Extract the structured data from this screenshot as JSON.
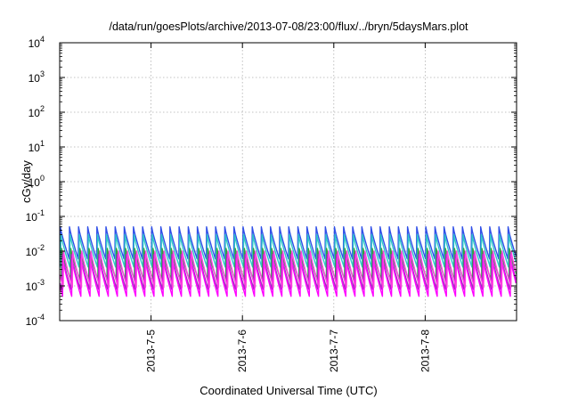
{
  "chart_data": {
    "type": "line",
    "title": "/data/run/goesPlots/archive/2013-07-08/23:00/flux/../bryn/5daysMars.plot",
    "xlabel": "Coordinated Universal Time (UTC)",
    "ylabel": "cGy/day",
    "yscale": "log",
    "ylim": [
      0.0001,
      10000
    ],
    "xlim": [
      "2013-07-04 00:00",
      "2013-07-09 00:00"
    ],
    "grid": true,
    "legend": "none",
    "y_ticks": [
      {
        "base": "10",
        "exp": "-4"
      },
      {
        "base": "10",
        "exp": "-3"
      },
      {
        "base": "10",
        "exp": "-2"
      },
      {
        "base": "10",
        "exp": "-1"
      },
      {
        "base": "10",
        "exp": "0"
      },
      {
        "base": "10",
        "exp": "1"
      },
      {
        "base": "10",
        "exp": "2"
      },
      {
        "base": "10",
        "exp": "3"
      },
      {
        "base": "10",
        "exp": "4"
      }
    ],
    "x_ticks": [
      {
        "label": "2013-7-5",
        "value": "2013-07-05 00:00"
      },
      {
        "label": "2013-7-6",
        "value": "2013-07-06 00:00"
      },
      {
        "label": "2013-7-7",
        "value": "2013-07-07 00:00"
      },
      {
        "label": "2013-7-8",
        "value": "2013-07-08 00:00"
      }
    ],
    "oscillation": {
      "period_hours": 2.4,
      "note_values": "each series rises sharply at the start of every cycle and decays exponentially until the next cycle"
    },
    "series": [
      {
        "color": "#e03030",
        "peak": 0.045,
        "trough": 0.004
      },
      {
        "color": "#3050e8",
        "peak": 0.05,
        "trough": 0.006
      },
      {
        "color": "#30c8c8",
        "peak": 0.03,
        "trough": 0.0035
      },
      {
        "color": "#30a040",
        "peak": 0.012,
        "trough": 0.0015
      },
      {
        "color": "#a030c0",
        "peak": 0.008,
        "trough": 0.0008
      },
      {
        "color": "#ff00ff",
        "peak": 0.006,
        "trough": 0.0005
      },
      {
        "color": "#ff40e0",
        "peak": 0.01,
        "trough": 0.0009
      }
    ]
  }
}
